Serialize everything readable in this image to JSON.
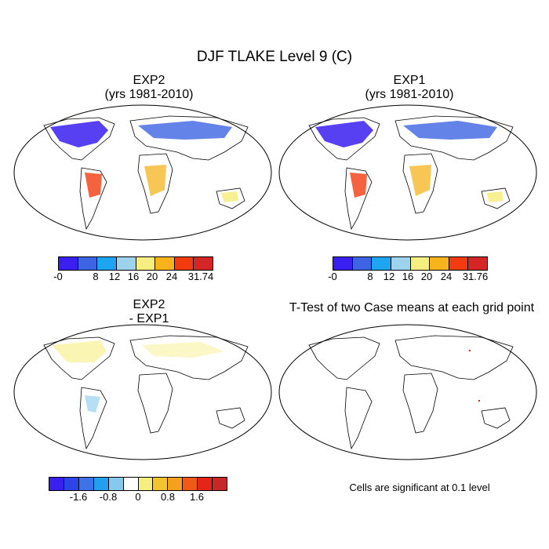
{
  "figure_title": "DJF TLAKE Level 9 (C)",
  "panels": [
    {
      "title_line1": "EXP2",
      "title_line2": "(yrs 1981-2010)"
    },
    {
      "title_line1": "EXP1",
      "title_line2": "(yrs 1981-2010)"
    },
    {
      "title_line1": "EXP2",
      "title_line2": "- EXP1"
    },
    {
      "title_line1": "T-Test of two Case means at each grid point",
      "title_line2": ""
    }
  ],
  "colorbars": [
    {
      "colors": [
        "#3a1ff0",
        "#3d64e3",
        "#1ea5f2",
        "#9dd3ec",
        "#f6ee80",
        "#f6b31c",
        "#f23b0f",
        "#d42626"
      ],
      "labels": [
        "-0",
        "8",
        "12",
        "16",
        "20",
        "24",
        "31.74"
      ]
    },
    {
      "colors": [
        "#3a1ff0",
        "#3d64e3",
        "#1ea5f2",
        "#9dd3ec",
        "#f6ee80",
        "#f6b31c",
        "#f23b0f",
        "#d42626"
      ],
      "labels": [
        "-0",
        "8",
        "12",
        "16",
        "20",
        "24",
        "31.76"
      ]
    },
    {
      "colors": [
        "#3a1ff0",
        "#2e45e6",
        "#3d72e8",
        "#22a0ee",
        "#86c9ef",
        "#ffffff",
        "#f6ee80",
        "#f4c52b",
        "#f6a11e",
        "#f05a14",
        "#e3251a",
        "#c62828"
      ],
      "labels": [
        "-1.6",
        "-0.8",
        "0",
        "0.8",
        "1.6"
      ]
    }
  ],
  "significance_note": "Cells are significant at 0.1 level"
}
